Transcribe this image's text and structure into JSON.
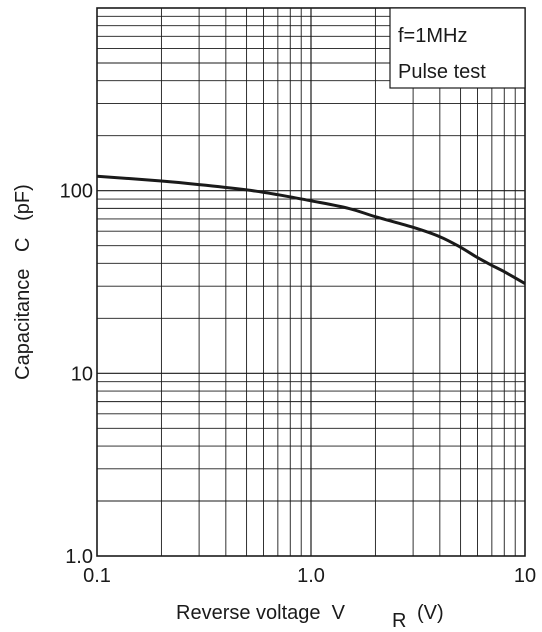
{
  "chart_data": {
    "type": "line",
    "x_scale": "log",
    "y_scale": "log",
    "xlim": [
      0.1,
      10
    ],
    "ylim": [
      1.0,
      1000
    ],
    "grid": true,
    "xlabel": {
      "main": "Reverse voltage  V",
      "sub": "R",
      "unit": "(V)"
    },
    "ylabel": "Capacitance   C   (pF)",
    "x_ticks": [
      {
        "value": 0.1,
        "label": "0.1"
      },
      {
        "value": 1,
        "label": "1.0"
      },
      {
        "value": 10,
        "label": "10"
      }
    ],
    "y_ticks": [
      {
        "value": 1,
        "label": "1.0"
      },
      {
        "value": 10,
        "label": "10"
      },
      {
        "value": 100,
        "label": "100"
      }
    ],
    "annotations": [
      "f=1MHz",
      "Pulse test"
    ],
    "annotation_position": "top-right",
    "series": [
      {
        "color": "#1a1a1a",
        "x": [
          0.1,
          0.2,
          0.3,
          0.5,
          0.7,
          1.0,
          1.5,
          2.0,
          3.0,
          4.0,
          5.0,
          6.0,
          7.0,
          8.0,
          10.0
        ],
        "y": [
          120,
          113,
          108,
          101,
          95,
          88,
          80,
          72,
          63,
          56,
          49,
          43,
          39,
          36,
          31
        ]
      }
    ]
  }
}
